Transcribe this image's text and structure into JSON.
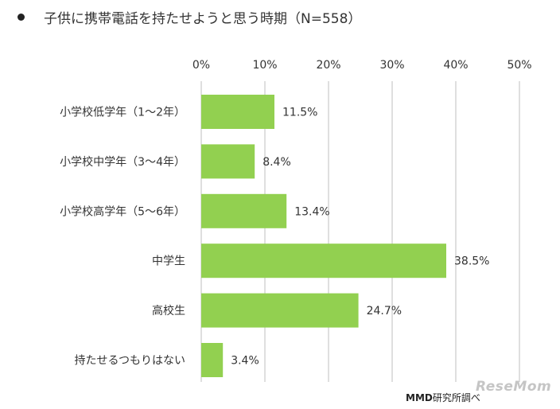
{
  "chart_data": {
    "type": "bar",
    "orientation": "horizontal",
    "title": "子供に携帯電話を持たせようと思う時期（N=558）",
    "categories": [
      "小学校低学年（1～2年）",
      "小学校中学年（3～4年）",
      "小学校高学年（5～6年）",
      "中学生",
      "高校生",
      "持たせるつもりはない"
    ],
    "values": [
      11.5,
      8.4,
      13.4,
      38.5,
      24.7,
      3.4
    ],
    "value_labels": [
      "11.5%",
      "8.4%",
      "13.4%",
      "38.5%",
      "24.7%",
      "3.4%"
    ],
    "xlim": [
      0,
      50
    ],
    "x_ticks": [
      0,
      10,
      20,
      30,
      40,
      50
    ],
    "x_tick_labels": [
      "0%",
      "10%",
      "20%",
      "30%",
      "40%",
      "50%"
    ],
    "x_axis_position": "top",
    "grid": true,
    "legend": "none",
    "bar_color": "#92d050",
    "grid_color": "#bfbfbf"
  },
  "source": {
    "brand": "MMD",
    "text": "研究所調べ"
  },
  "watermark": "ReseMom"
}
